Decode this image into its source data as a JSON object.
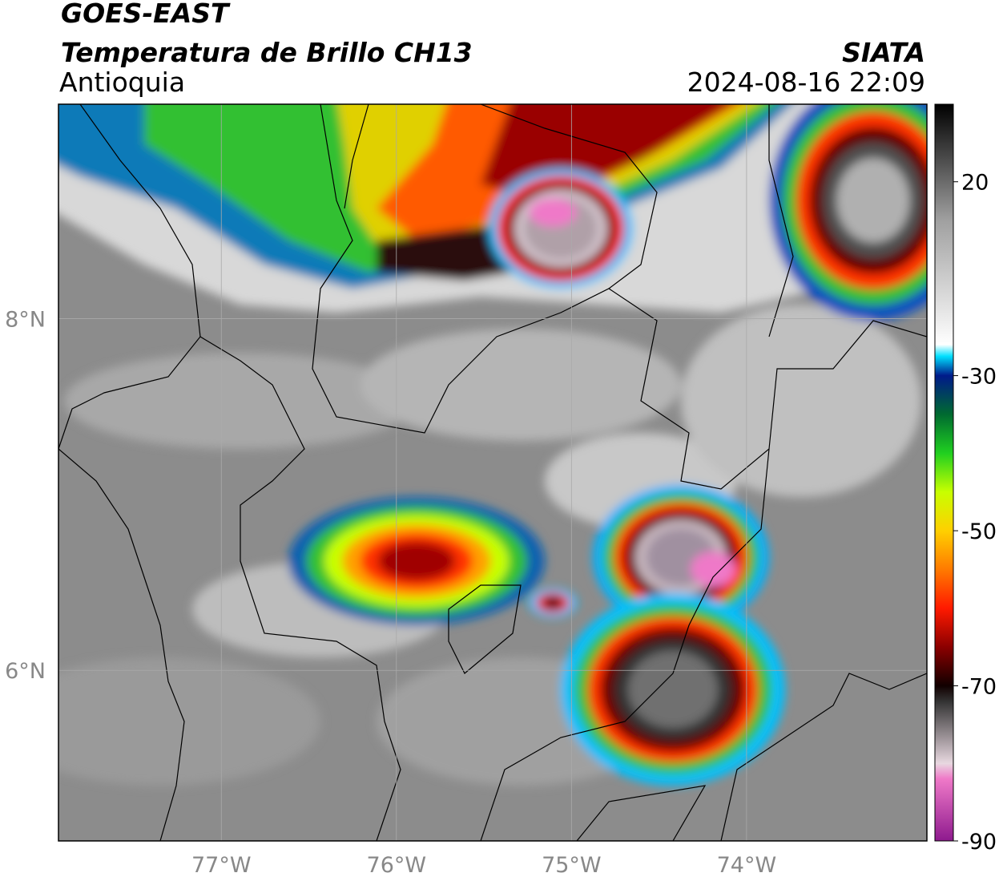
{
  "chart_data": {
    "type": "map",
    "title": "GOES-EAST",
    "subtitle": "Temperatura de Brillo CH13",
    "region": "Antioquia",
    "source": "SIATA",
    "datetime": "2024-08-16 22:09",
    "xlim": [
      -77.93,
      -72.97
    ],
    "ylim": [
      5.03,
      9.22
    ],
    "xticks": [
      {
        "value": -77,
        "label": "77°W"
      },
      {
        "value": -76,
        "label": "76°W"
      },
      {
        "value": -75,
        "label": "75°W"
      },
      {
        "value": -74,
        "label": "74°W"
      }
    ],
    "yticks": [
      {
        "value": 6,
        "label": "6°N"
      },
      {
        "value": 8,
        "label": "8°N"
      }
    ],
    "grid": true,
    "colorbar": {
      "lim": [
        -90,
        40
      ],
      "ticks": [
        -90,
        -70,
        -50,
        -30,
        20
      ],
      "colormap": [
        {
          "value": -90,
          "color": "#8e1a8e"
        },
        {
          "value": -82,
          "color": "#ef79c8"
        },
        {
          "value": -80,
          "color": "#e8d8e0"
        },
        {
          "value": -72,
          "color": "#333333"
        },
        {
          "value": -70,
          "color": "#110000"
        },
        {
          "value": -65,
          "color": "#8b0000"
        },
        {
          "value": -60,
          "color": "#ff1a00"
        },
        {
          "value": -55,
          "color": "#ff7a00"
        },
        {
          "value": -50,
          "color": "#ffd000"
        },
        {
          "value": -45,
          "color": "#c8ff00"
        },
        {
          "value": -40,
          "color": "#20d020"
        },
        {
          "value": -35,
          "color": "#006a30"
        },
        {
          "value": -30,
          "color": "#001a8a"
        },
        {
          "value": -25,
          "color": "#00e0ff"
        },
        {
          "value": -22,
          "color": "#ffffff"
        },
        {
          "value": 10,
          "color": "#a0a0a0"
        },
        {
          "value": 40,
          "color": "#000000"
        }
      ]
    }
  }
}
